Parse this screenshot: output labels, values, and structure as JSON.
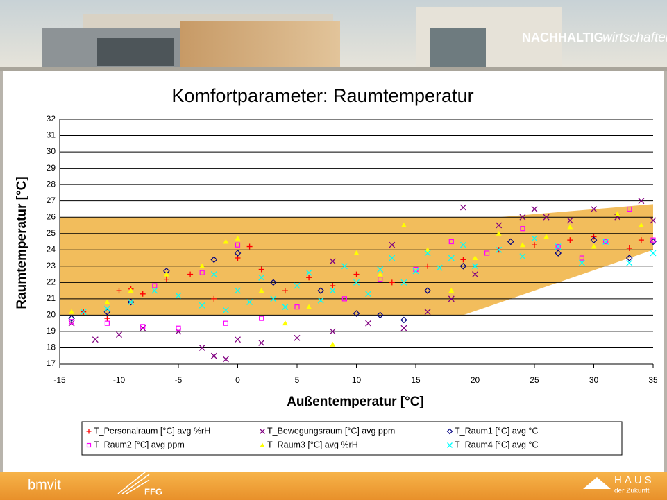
{
  "header": {
    "brand_bold": "NACHHALTIG",
    "brand_italic": "wirtschaften"
  },
  "footer": {
    "left_logo": "bmvit",
    "ffg": "FFG",
    "haus": "HAUS",
    "zukunft": "der Zukunft"
  },
  "chart_data": {
    "type": "scatter",
    "title": "Komfortparameter: Raumtemperatur",
    "x_label": "Außentemperatur [°C]",
    "y_label": "Raumtemperatur [°C]",
    "xlim": [
      -15,
      35
    ],
    "xticks": [
      -15,
      -10,
      -5,
      0,
      5,
      10,
      15,
      20,
      25,
      30,
      35
    ],
    "ylim": [
      17,
      32
    ],
    "yticks": [
      17,
      18,
      19,
      20,
      21,
      22,
      23,
      24,
      25,
      26,
      27,
      28,
      29,
      30,
      31,
      32
    ],
    "grid": true,
    "band": {
      "color": "#f2bd5c",
      "x": [
        -15,
        22,
        35,
        35,
        19,
        -15
      ],
      "y": [
        26,
        26,
        26.8,
        24,
        20,
        20
      ]
    },
    "series": [
      {
        "name": "T_Personalraum [°C] avg %rH",
        "color": "#ff0000",
        "marker": "plus",
        "x": [
          -13,
          -11,
          -10,
          -9,
          -8,
          -6,
          -4,
          -2,
          0,
          1,
          2,
          4,
          6,
          8,
          10,
          13,
          16,
          19,
          22,
          25,
          28,
          30,
          33,
          34
        ],
        "values": [
          20.2,
          19.8,
          21.5,
          21.6,
          21.3,
          22.2,
          22.5,
          21,
          23.5,
          24.2,
          22.8,
          21.5,
          22.3,
          21.8,
          22.5,
          22,
          23,
          23.4,
          24,
          24.3,
          24.6,
          24.8,
          24.1,
          24.6
        ]
      },
      {
        "name": "T_Bewegungsraum [°C] avg ppm",
        "color": "#800080",
        "marker": "x",
        "x": [
          -14,
          -12,
          -10,
          -8,
          -5,
          -3,
          -2,
          -1,
          0,
          2,
          5,
          8,
          11,
          14,
          16,
          18,
          20,
          22,
          24,
          25,
          26,
          28,
          30,
          32,
          34,
          35,
          13,
          8,
          19
        ],
        "values": [
          19.5,
          18.5,
          18.8,
          19.2,
          19,
          18,
          17.5,
          17.3,
          18.5,
          18.3,
          18.6,
          19,
          19.5,
          19.2,
          20.2,
          21,
          22.5,
          25.5,
          26,
          26.5,
          26,
          25.8,
          26.5,
          26,
          27,
          25.8,
          24.3,
          23.3,
          26.6
        ]
      },
      {
        "name": "T_Raum1 [°C] avg °C",
        "color": "#000080",
        "marker": "diamond",
        "x": [
          -14,
          -11,
          -9,
          -6,
          -2,
          0,
          3,
          7,
          10,
          12,
          14,
          16,
          19,
          23,
          27,
          30,
          33,
          35
        ],
        "values": [
          19.8,
          20.2,
          20.8,
          22.7,
          23.4,
          23.8,
          22,
          21.5,
          20.1,
          20,
          19.7,
          21.5,
          23,
          24.5,
          23.8,
          24.6,
          23.5,
          24.5
        ]
      },
      {
        "name": "T_Raum2 [°C] avg ppm",
        "color": "#ff00ff",
        "marker": "square",
        "x": [
          -14,
          -11,
          -8,
          -7,
          -5,
          -3,
          -1,
          0,
          2,
          5,
          9,
          12,
          15,
          18,
          21,
          24,
          27,
          29,
          31,
          33,
          35
        ],
        "values": [
          19.6,
          19.5,
          19.3,
          21.8,
          19.2,
          22.6,
          19.5,
          24.3,
          19.8,
          20.5,
          21,
          22.2,
          22.8,
          24.5,
          23.8,
          25.3,
          24.2,
          23.5,
          24.5,
          26.5,
          24.6
        ]
      },
      {
        "name": "T_Raum3 [°C] avg %rH",
        "color": "#ffff00",
        "marker": "triangle",
        "x": [
          -14,
          -11,
          -9,
          -6,
          -3,
          -1,
          0,
          2,
          4,
          6,
          8,
          10,
          12,
          14,
          16,
          18,
          20,
          22,
          24,
          26,
          28,
          30,
          32,
          34
        ],
        "values": [
          20.2,
          20.8,
          21.5,
          22.5,
          23,
          24.5,
          24.7,
          21.5,
          19.5,
          20.5,
          18.2,
          23.8,
          22.5,
          25.5,
          24,
          21.5,
          23.5,
          25,
          24.3,
          24.8,
          25.4,
          24.2,
          26.2,
          25.5
        ]
      },
      {
        "name": "T_Raum4 [°C] avg °C",
        "color": "#00ffff",
        "marker": "x",
        "x": [
          -13,
          -11,
          -9,
          -7,
          -5,
          -3,
          -2,
          -1,
          0,
          1,
          2,
          3,
          4,
          5,
          6,
          7,
          8,
          9,
          10,
          11,
          12,
          13,
          14,
          15,
          16,
          17,
          18,
          19,
          20,
          22,
          24,
          25,
          27,
          29,
          31,
          33,
          35
        ],
        "values": [
          20.2,
          20.4,
          20.8,
          21.5,
          21.2,
          20.6,
          22.5,
          20.3,
          21.5,
          20.8,
          22.3,
          21,
          20.5,
          21.8,
          22.6,
          20.9,
          21.5,
          23,
          22,
          21.3,
          22.8,
          23.5,
          22,
          22.7,
          23.8,
          22.9,
          23.5,
          24.3,
          23,
          24,
          23.6,
          24.7,
          24.2,
          23.2,
          24.5,
          23.2,
          23.8
        ]
      }
    ]
  }
}
